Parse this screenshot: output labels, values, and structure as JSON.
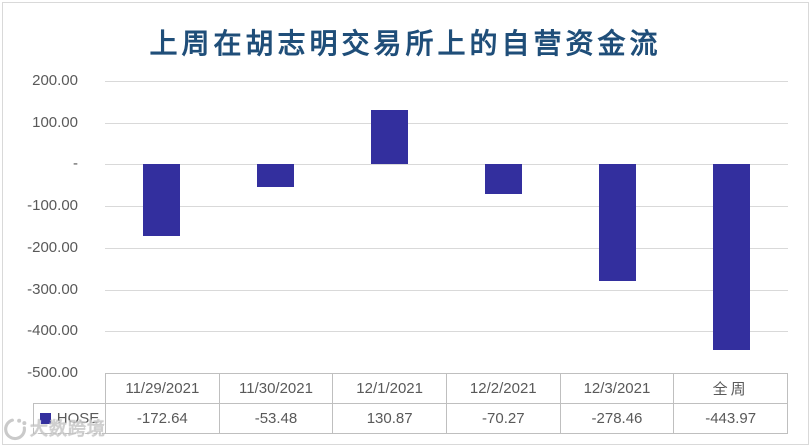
{
  "watermark": {
    "icon": "dashu-logo-icon",
    "text": "大数跨境"
  },
  "chart_data": {
    "type": "bar",
    "title": "上周在胡志明交易所上的自营资金流",
    "categories": [
      "11/29/2021",
      "11/30/2021",
      "12/1/2021",
      "12/2/2021",
      "12/3/2021",
      "全周"
    ],
    "series": [
      {
        "name": "HOSE",
        "values": [
          -172.64,
          -53.48,
          130.87,
          -70.27,
          -278.46,
          -443.97
        ]
      }
    ],
    "value_labels": [
      "-172.64",
      "-53.48",
      "130.87",
      "-70.27",
      "-278.46",
      "-443.97"
    ],
    "yticks": [
      {
        "label": "200.00",
        "value": 200
      },
      {
        "label": "100.00",
        "value": 100
      },
      {
        "label": "-",
        "value": 0
      },
      {
        "label": "-100.00",
        "value": -100
      },
      {
        "label": "-200.00",
        "value": -200
      },
      {
        "label": "-300.00",
        "value": -300
      },
      {
        "label": "-400.00",
        "value": -400
      },
      {
        "label": "-500.00",
        "value": -500
      }
    ],
    "ylim": [
      -500,
      200
    ],
    "xlabel": "",
    "ylabel": "",
    "grid": true,
    "legend_position": "data-table-left",
    "colors": {
      "bar": "#332F9E",
      "title": "#1F4E79",
      "axis_text": "#595959",
      "gridline": "#D9D9D9",
      "table_border": "#BFBFBF",
      "table_text": "#595959",
      "watermark": "#C4C4C4"
    }
  }
}
